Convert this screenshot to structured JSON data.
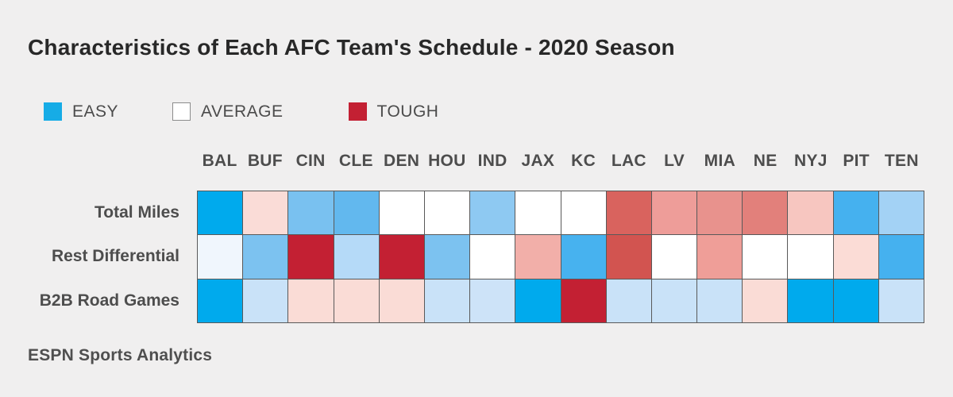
{
  "title": "Characteristics of Each AFC Team's Schedule - 2020 Season",
  "source": "ESPN Sports Analytics",
  "legend": [
    {
      "label": "EASY",
      "color": "#16ace6"
    },
    {
      "label": "AVERAGE",
      "color": "#ffffff"
    },
    {
      "label": "TOUGH",
      "color": "#c32033"
    }
  ],
  "colors": {
    "background": "#f0efef",
    "grid_border": "#595959",
    "title_text": "#282828",
    "label_text": "#4d4d4d",
    "easy_strong": "#00aaed",
    "average": "#ffffff",
    "tough_strong": "#c32033"
  },
  "chart_data": {
    "type": "heatmap",
    "title": "Characteristics of Each AFC Team's Schedule - 2020 Season",
    "legend_scale": "blue = EASY, white = AVERAGE, red = TOUGH",
    "columns": [
      "BAL",
      "BUF",
      "CIN",
      "CLE",
      "DEN",
      "HOU",
      "IND",
      "JAX",
      "KC",
      "LAC",
      "LV",
      "MIA",
      "NE",
      "NYJ",
      "PIT",
      "TEN"
    ],
    "rows": [
      {
        "label": "Total Miles",
        "cell_colors": [
          "#00aaed",
          "#fadcd7",
          "#79c1f0",
          "#62b8ee",
          "#ffffff",
          "#ffffff",
          "#8ec9f2",
          "#ffffff",
          "#ffffff",
          "#d9635e",
          "#ee9d99",
          "#e8928d",
          "#e2807b",
          "#f7c6c0",
          "#45b1ef",
          "#a3d2f5"
        ]
      },
      {
        "label": "Rest Differential",
        "cell_colors": [
          "#f0f6fd",
          "#7cc2f0",
          "#c32033",
          "#b5daf8",
          "#c32033",
          "#7cc2f0",
          "#ffffff",
          "#f2afa9",
          "#47b2ef",
          "#d25450",
          "#ffffff",
          "#ef9e98",
          "#ffffff",
          "#ffffff",
          "#fbdcd6",
          "#45b1ef"
        ]
      },
      {
        "label": "B2B Road Games",
        "cell_colors": [
          "#00aaed",
          "#c9e2f8",
          "#fadcd6",
          "#fadcd6",
          "#fadcd6",
          "#c9e2f8",
          "#cde3f8",
          "#00aaed",
          "#c32033",
          "#c9e2f8",
          "#c9e2f8",
          "#c9e2f8",
          "#fadcd6",
          "#00aaed",
          "#00aaed",
          "#c9e2f8"
        ]
      }
    ]
  }
}
